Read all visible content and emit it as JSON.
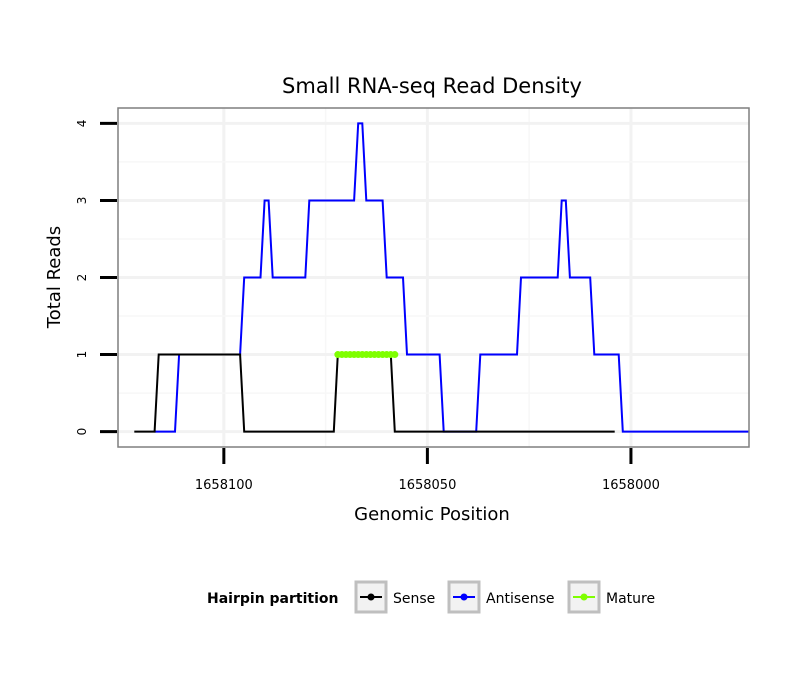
{
  "chart_data": {
    "type": "line",
    "title": "Small RNA-seq Read Density",
    "xlabel": "Genomic Position",
    "ylabel": "Total Reads",
    "x_reversed": true,
    "xlim": [
      1658126,
      1657971
    ],
    "ylim": [
      -0.2,
      4.2
    ],
    "x_ticks": [
      1658100,
      1658050,
      1658000
    ],
    "x_tick_labels": [
      "1658100",
      "1658050",
      "1658000"
    ],
    "y_ticks": [
      0,
      1,
      2,
      3,
      4
    ],
    "y_tick_labels": [
      "0",
      "1",
      "2",
      "3",
      "4"
    ],
    "grid": true,
    "legend": {
      "title": "Hairpin partition",
      "position": "bottom",
      "entries": [
        "Sense",
        "Antisense",
        "Mature"
      ]
    },
    "series": [
      {
        "name": "Sense",
        "color": "#000000",
        "x": [
          1658122,
          1658117,
          1658116,
          1658096,
          1658095,
          1658073,
          1658072,
          1658059,
          1658058,
          1658004
        ],
        "y": [
          0,
          0,
          1,
          1,
          0,
          0,
          1,
          1,
          0,
          0
        ]
      },
      {
        "name": "Antisense",
        "color": "#0000ff",
        "x": [
          1658117,
          1658112,
          1658111,
          1658096,
          1658095,
          1658091,
          1658090,
          1658089,
          1658088,
          1658080,
          1658079,
          1658068,
          1658067,
          1658066,
          1658065,
          1658061,
          1658060,
          1658056,
          1658055,
          1658047,
          1658046,
          1658038,
          1658037,
          1658028,
          1658027,
          1658018,
          1658017,
          1658016,
          1658015,
          1658010,
          1658009,
          1658003,
          1658002,
          1657995,
          1657994,
          1657971
        ],
        "y": [
          0,
          0,
          1,
          1,
          2,
          2,
          3,
          3,
          2,
          2,
          3,
          3,
          4,
          4,
          3,
          3,
          2,
          2,
          1,
          1,
          0,
          0,
          1,
          1,
          2,
          2,
          3,
          3,
          2,
          2,
          1,
          1,
          0,
          0,
          0,
          0
        ]
      },
      {
        "name": "Mature",
        "color": "#7fff00",
        "x": [
          1658072,
          1658071,
          1658070,
          1658069,
          1658068,
          1658067,
          1658066,
          1658065,
          1658064,
          1658063,
          1658062,
          1658061,
          1658060,
          1658059,
          1658058
        ],
        "y": [
          1,
          1,
          1,
          1,
          1,
          1,
          1,
          1,
          1,
          1,
          1,
          1,
          1,
          1,
          1
        ]
      }
    ]
  }
}
